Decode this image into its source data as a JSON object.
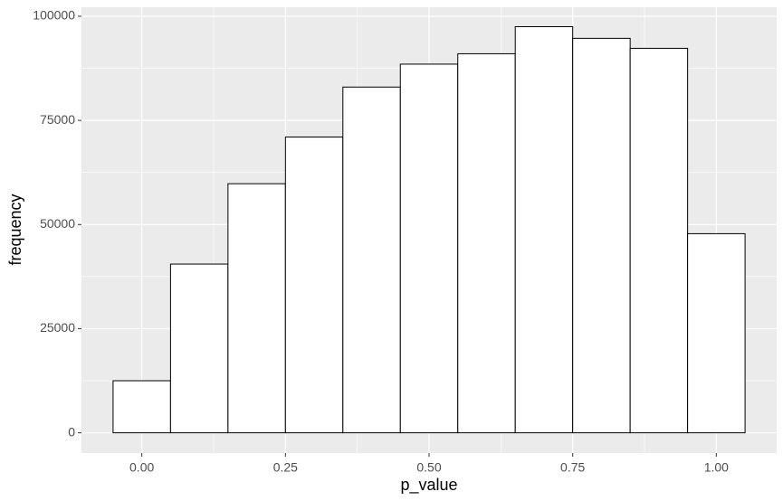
{
  "chart_data": {
    "type": "histogram",
    "x_label": "p_value",
    "y_label": "frequency",
    "bins": [
      -0.05,
      0.05,
      0.15,
      0.25,
      0.35,
      0.45,
      0.55,
      0.65,
      0.75,
      0.85,
      0.95,
      1.05
    ],
    "values": [
      12500,
      40500,
      59800,
      71000,
      83000,
      88500,
      91000,
      97500,
      94700,
      92300,
      47800
    ],
    "color": "#ffffff",
    "edge_color": "#000000",
    "xlim": [
      -0.105,
      1.105
    ],
    "xticks": [
      {
        "value": 0,
        "label": "0.00"
      },
      {
        "value": 0.25,
        "label": "0.25"
      },
      {
        "value": 0.5,
        "label": "0.50"
      },
      {
        "value": 0.75,
        "label": "0.75"
      },
      {
        "value": 1,
        "label": "1.00"
      }
    ],
    "x_minor_ticks": [
      0.125,
      0.375,
      0.625,
      0.875
    ],
    "ylim": [
      -4865,
      102165
    ],
    "yticks": [
      0,
      25000,
      50000,
      75000,
      100000
    ],
    "y_minor_ticks": [
      12500,
      37500,
      62500,
      87500
    ],
    "grid": true,
    "panel_color": "#ebebeb"
  }
}
